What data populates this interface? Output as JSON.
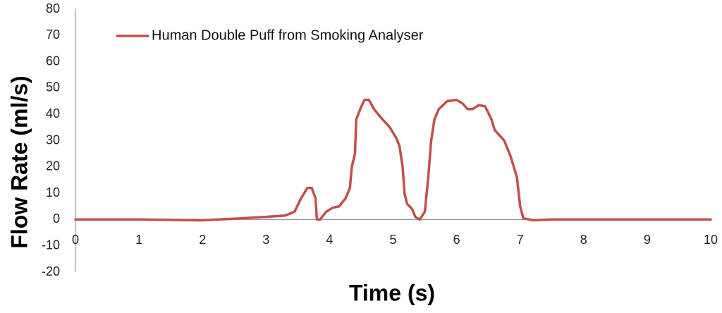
{
  "chart_data": {
    "type": "line",
    "x": [
      0,
      1,
      2,
      2.5,
      3,
      3.3,
      3.45,
      3.55,
      3.65,
      3.72,
      3.78,
      3.8,
      3.85,
      3.95,
      4.05,
      4.15,
      4.25,
      4.32,
      4.35,
      4.4,
      4.42,
      4.5,
      4.55,
      4.62,
      4.7,
      4.8,
      4.95,
      5.05,
      5.1,
      5.15,
      5.18,
      5.22,
      5.3,
      5.35,
      5.42,
      5.5,
      5.55,
      5.6,
      5.65,
      5.72,
      5.85,
      6.0,
      6.1,
      6.17,
      6.25,
      6.35,
      6.45,
      6.55,
      6.6,
      6.75,
      6.85,
      6.95,
      7.0,
      7.05,
      7.2,
      7.5,
      10
    ],
    "series": [
      {
        "name": "Human Double Puff from Smoking Analyser",
        "color": "#c0504d",
        "values": [
          0,
          0,
          -0.3,
          0.3,
          1,
          1.5,
          3,
          8,
          12,
          12,
          8,
          0,
          0,
          3,
          4.5,
          5,
          8,
          12,
          20,
          25,
          38,
          43,
          45.5,
          45.5,
          42,
          39,
          35,
          31,
          28,
          20,
          10,
          6,
          4,
          1,
          0,
          3,
          15,
          30,
          38,
          42,
          45,
          45.5,
          44,
          42,
          42,
          43.5,
          43,
          38,
          34,
          30,
          24,
          16,
          5,
          0.5,
          -0.3,
          0,
          0
        ]
      }
    ],
    "xlabel": "Time (s)",
    "ylabel": "Flow Rate (ml/s)",
    "xlim": [
      0,
      10
    ],
    "ylim": [
      -20,
      80
    ],
    "xticks": [
      0,
      1,
      2,
      3,
      4,
      5,
      6,
      7,
      8,
      9,
      10
    ],
    "yticks": [
      -20,
      -10,
      0,
      10,
      20,
      30,
      40,
      50,
      60,
      70,
      80
    ],
    "grid": false,
    "legend": "top-left"
  }
}
